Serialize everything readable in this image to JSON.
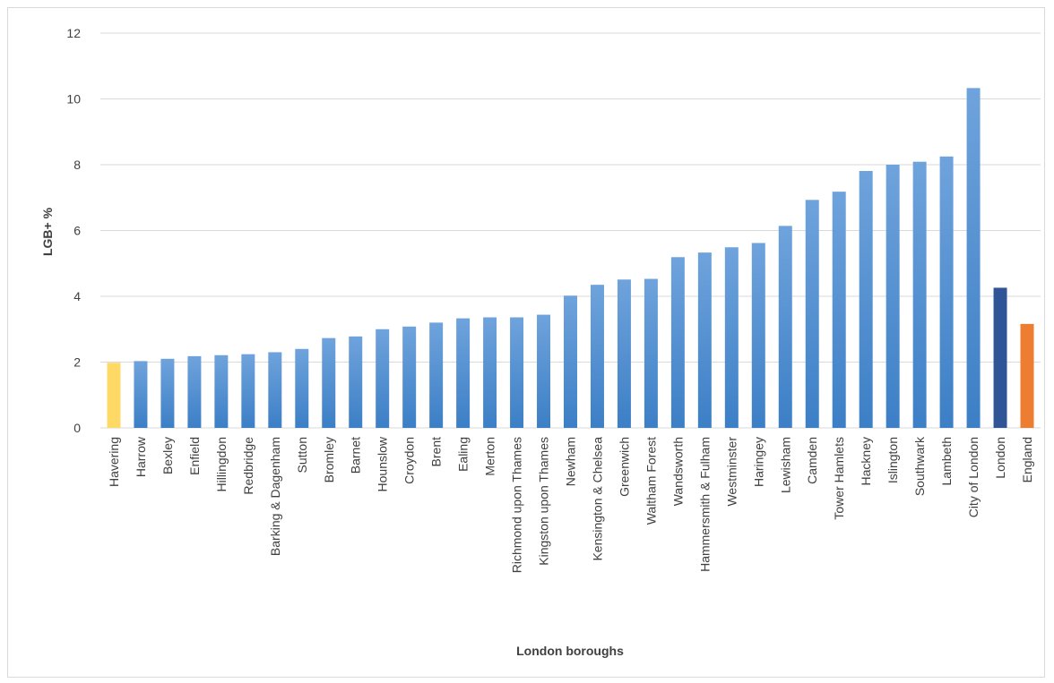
{
  "chart_data": {
    "type": "bar",
    "title": "",
    "xlabel": "London boroughs",
    "ylabel": "LGB+ %",
    "ylim": [
      0,
      12
    ],
    "yticks": [
      0,
      2,
      4,
      6,
      8,
      10,
      12
    ],
    "grid": true,
    "legend": "none",
    "categories": [
      "Havering",
      "Harrow",
      "Bexley",
      "Enfield",
      "Hillingdon",
      "Redbridge",
      "Barking & Dagenham",
      "Sutton",
      "Bromley",
      "Barnet",
      "Hounslow",
      "Croydon",
      "Brent",
      "Ealing",
      "Merton",
      "Richmond upon Thames",
      "Kingston upon Thames",
      "Newham",
      "Kensington & Chelsea",
      "Greenwich",
      "Waltham Forest",
      "Wandsworth",
      "Hammersmith & Fulham",
      "Westminster",
      "Haringey",
      "Lewisham",
      "Camden",
      "Tower Hamlets",
      "Hackney",
      "Islington",
      "Southwark",
      "Lambeth",
      "City of London",
      "London",
      "England"
    ],
    "values": [
      1.98,
      2.03,
      2.1,
      2.18,
      2.21,
      2.24,
      2.3,
      2.4,
      2.73,
      2.78,
      3.0,
      3.08,
      3.2,
      3.33,
      3.36,
      3.36,
      3.44,
      4.02,
      4.35,
      4.51,
      4.53,
      5.19,
      5.33,
      5.49,
      5.62,
      6.14,
      6.93,
      7.18,
      7.81,
      8.0,
      8.09,
      8.25,
      10.33,
      4.26,
      3.16
    ],
    "colors": {
      "default_top": "#6fa3dc",
      "default_bottom": "#3c7fc6",
      "Havering": "#ffd966",
      "London": "#2f5597",
      "England": "#ed7d31"
    }
  }
}
